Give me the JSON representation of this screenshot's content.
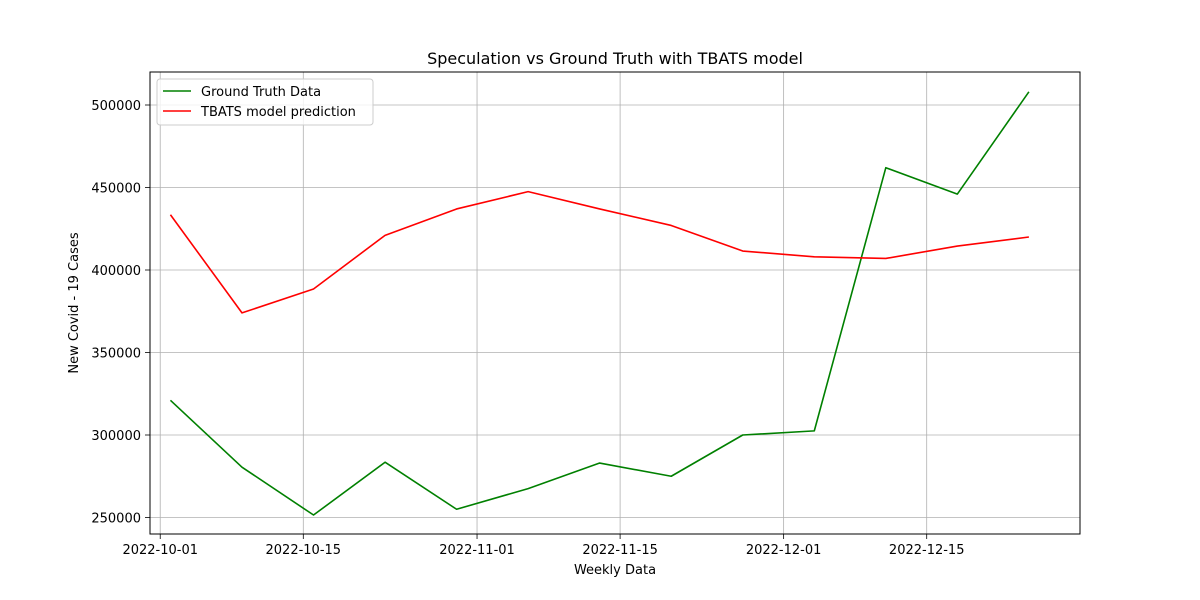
{
  "chart_data": {
    "type": "line",
    "title": "Speculation vs Ground Truth with TBATS model",
    "xlabel": "Weekly Data",
    "ylabel": "New Covid - 19 Cases",
    "x": [
      "2022-10-02",
      "2022-10-09",
      "2022-10-16",
      "2022-10-23",
      "2022-10-30",
      "2022-11-06",
      "2022-11-13",
      "2022-11-20",
      "2022-11-27",
      "2022-12-04",
      "2022-12-11",
      "2022-12-18",
      "2022-12-25"
    ],
    "xlim": [
      "2022-09-30",
      "2022-12-30"
    ],
    "ylim": [
      240000,
      520000
    ],
    "x_ticks": [
      "2022-10-01",
      "2022-10-15",
      "2022-11-01",
      "2022-11-15",
      "2022-12-01",
      "2022-12-15"
    ],
    "y_ticks": [
      250000,
      300000,
      350000,
      400000,
      450000,
      500000
    ],
    "grid": true,
    "legend_position": "upper-left",
    "series": [
      {
        "name": "Ground Truth Data",
        "color": "#008000",
        "values": [
          321000,
          280500,
          251500,
          283500,
          255000,
          267500,
          283000,
          275000,
          300000,
          302500,
          462000,
          446000,
          508000
        ]
      },
      {
        "name": "TBATS model prediction",
        "color": "#ff0000",
        "values": [
          433500,
          374000,
          388500,
          421000,
          437000,
          447500,
          437000,
          427000,
          411500,
          408000,
          407000,
          414500,
          420000
        ]
      }
    ]
  }
}
